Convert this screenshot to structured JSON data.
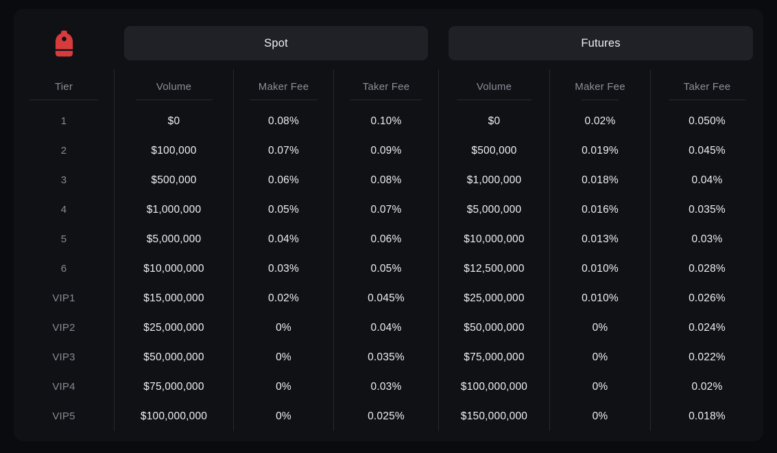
{
  "brand": {
    "icon": "backpack-logo",
    "color": "#d83b3d"
  },
  "tabs": [
    {
      "label": "Spot"
    },
    {
      "label": "Futures"
    }
  ],
  "table": {
    "tier_header": "Tier",
    "sections": [
      {
        "name": "Spot",
        "headers": [
          "Volume",
          "Maker Fee",
          "Taker Fee"
        ]
      },
      {
        "name": "Futures",
        "headers": [
          "Volume",
          "Maker Fee",
          "Taker Fee"
        ]
      }
    ],
    "rows": [
      {
        "tier": "1",
        "spot": [
          "$0",
          "0.08%",
          "0.10%"
        ],
        "futures": [
          "$0",
          "0.02%",
          "0.050%"
        ]
      },
      {
        "tier": "2",
        "spot": [
          "$100,000",
          "0.07%",
          "0.09%"
        ],
        "futures": [
          "$500,000",
          "0.019%",
          "0.045%"
        ]
      },
      {
        "tier": "3",
        "spot": [
          "$500,000",
          "0.06%",
          "0.08%"
        ],
        "futures": [
          "$1,000,000",
          "0.018%",
          "0.04%"
        ]
      },
      {
        "tier": "4",
        "spot": [
          "$1,000,000",
          "0.05%",
          "0.07%"
        ],
        "futures": [
          "$5,000,000",
          "0.016%",
          "0.035%"
        ]
      },
      {
        "tier": "5",
        "spot": [
          "$5,000,000",
          "0.04%",
          "0.06%"
        ],
        "futures": [
          "$10,000,000",
          "0.013%",
          "0.03%"
        ]
      },
      {
        "tier": "6",
        "spot": [
          "$10,000,000",
          "0.03%",
          "0.05%"
        ],
        "futures": [
          "$12,500,000",
          "0.010%",
          "0.028%"
        ]
      },
      {
        "tier": "VIP1",
        "spot": [
          "$15,000,000",
          "0.02%",
          "0.045%"
        ],
        "futures": [
          "$25,000,000",
          "0.010%",
          "0.026%"
        ]
      },
      {
        "tier": "VIP2",
        "spot": [
          "$25,000,000",
          "0%",
          "0.04%"
        ],
        "futures": [
          "$50,000,000",
          "0%",
          "0.024%"
        ]
      },
      {
        "tier": "VIP3",
        "spot": [
          "$50,000,000",
          "0%",
          "0.035%"
        ],
        "futures": [
          "$75,000,000",
          "0%",
          "0.022%"
        ]
      },
      {
        "tier": "VIP4",
        "spot": [
          "$75,000,000",
          "0%",
          "0.03%"
        ],
        "futures": [
          "$100,000,000",
          "0%",
          "0.02%"
        ]
      },
      {
        "tier": "VIP5",
        "spot": [
          "$100,000,000",
          "0%",
          "0.025%"
        ],
        "futures": [
          "$150,000,000",
          "0%",
          "0.018%"
        ]
      }
    ]
  },
  "colors": {
    "page_bg": "#0a0b0e",
    "card_bg": "#0f1115",
    "tab_bg": "#1f2127",
    "separator": "#26292e",
    "header_text": "#8b9096",
    "tier_text": "#878c93",
    "value_text": "#eef0f2",
    "accent_red": "#d83b3d"
  }
}
